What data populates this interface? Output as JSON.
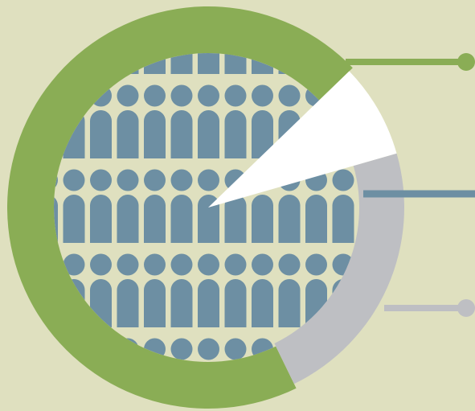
{
  "colors": {
    "background": "#dfe0bf",
    "green": "#8aad55",
    "gray": "#bebfc3",
    "blue": "#6d8fa3",
    "white": "#ffffff"
  },
  "icon": "people-crowd-icon",
  "ring_segments": [
    {
      "name": "green-segment",
      "share": 0.72
    },
    {
      "name": "white-segment",
      "share": 0.05
    },
    {
      "name": "gray-segment",
      "share": 0.23
    }
  ],
  "connectors": [
    {
      "name": "green-connector",
      "style": "dot"
    },
    {
      "name": "blue-connector",
      "style": "line"
    },
    {
      "name": "gray-connector",
      "style": "dot"
    }
  ]
}
